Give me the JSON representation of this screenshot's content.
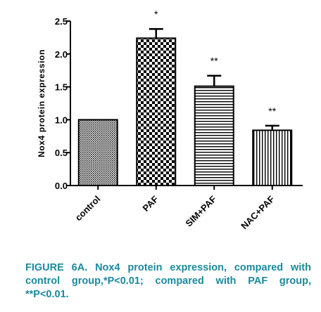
{
  "chart_data": {
    "type": "bar",
    "categories": [
      "control",
      "PAF",
      "SIM+PAF",
      "NAC+PAF"
    ],
    "values": [
      1.0,
      2.24,
      1.51,
      0.84
    ],
    "errors": [
      0.0,
      0.14,
      0.16,
      0.07
    ],
    "significance": [
      "",
      "*",
      "**",
      "**"
    ],
    "patterns": [
      "dots",
      "checker",
      "hlines",
      "vlines"
    ],
    "title": "",
    "xlabel": "",
    "ylabel": "Nox4 protein expression",
    "ylim": [
      0,
      2.5
    ],
    "yticks": [
      "0.0",
      "0.5",
      "1.0",
      "1.5",
      "2.0",
      "2.5"
    ],
    "grid": false,
    "legend": "none"
  },
  "caption": {
    "text": "FIGURE 6A. Nox4 protein expression, compared with control group,*P<0.01; compared with PAF group, **P<0.01.",
    "color": "#1a8a9c"
  }
}
